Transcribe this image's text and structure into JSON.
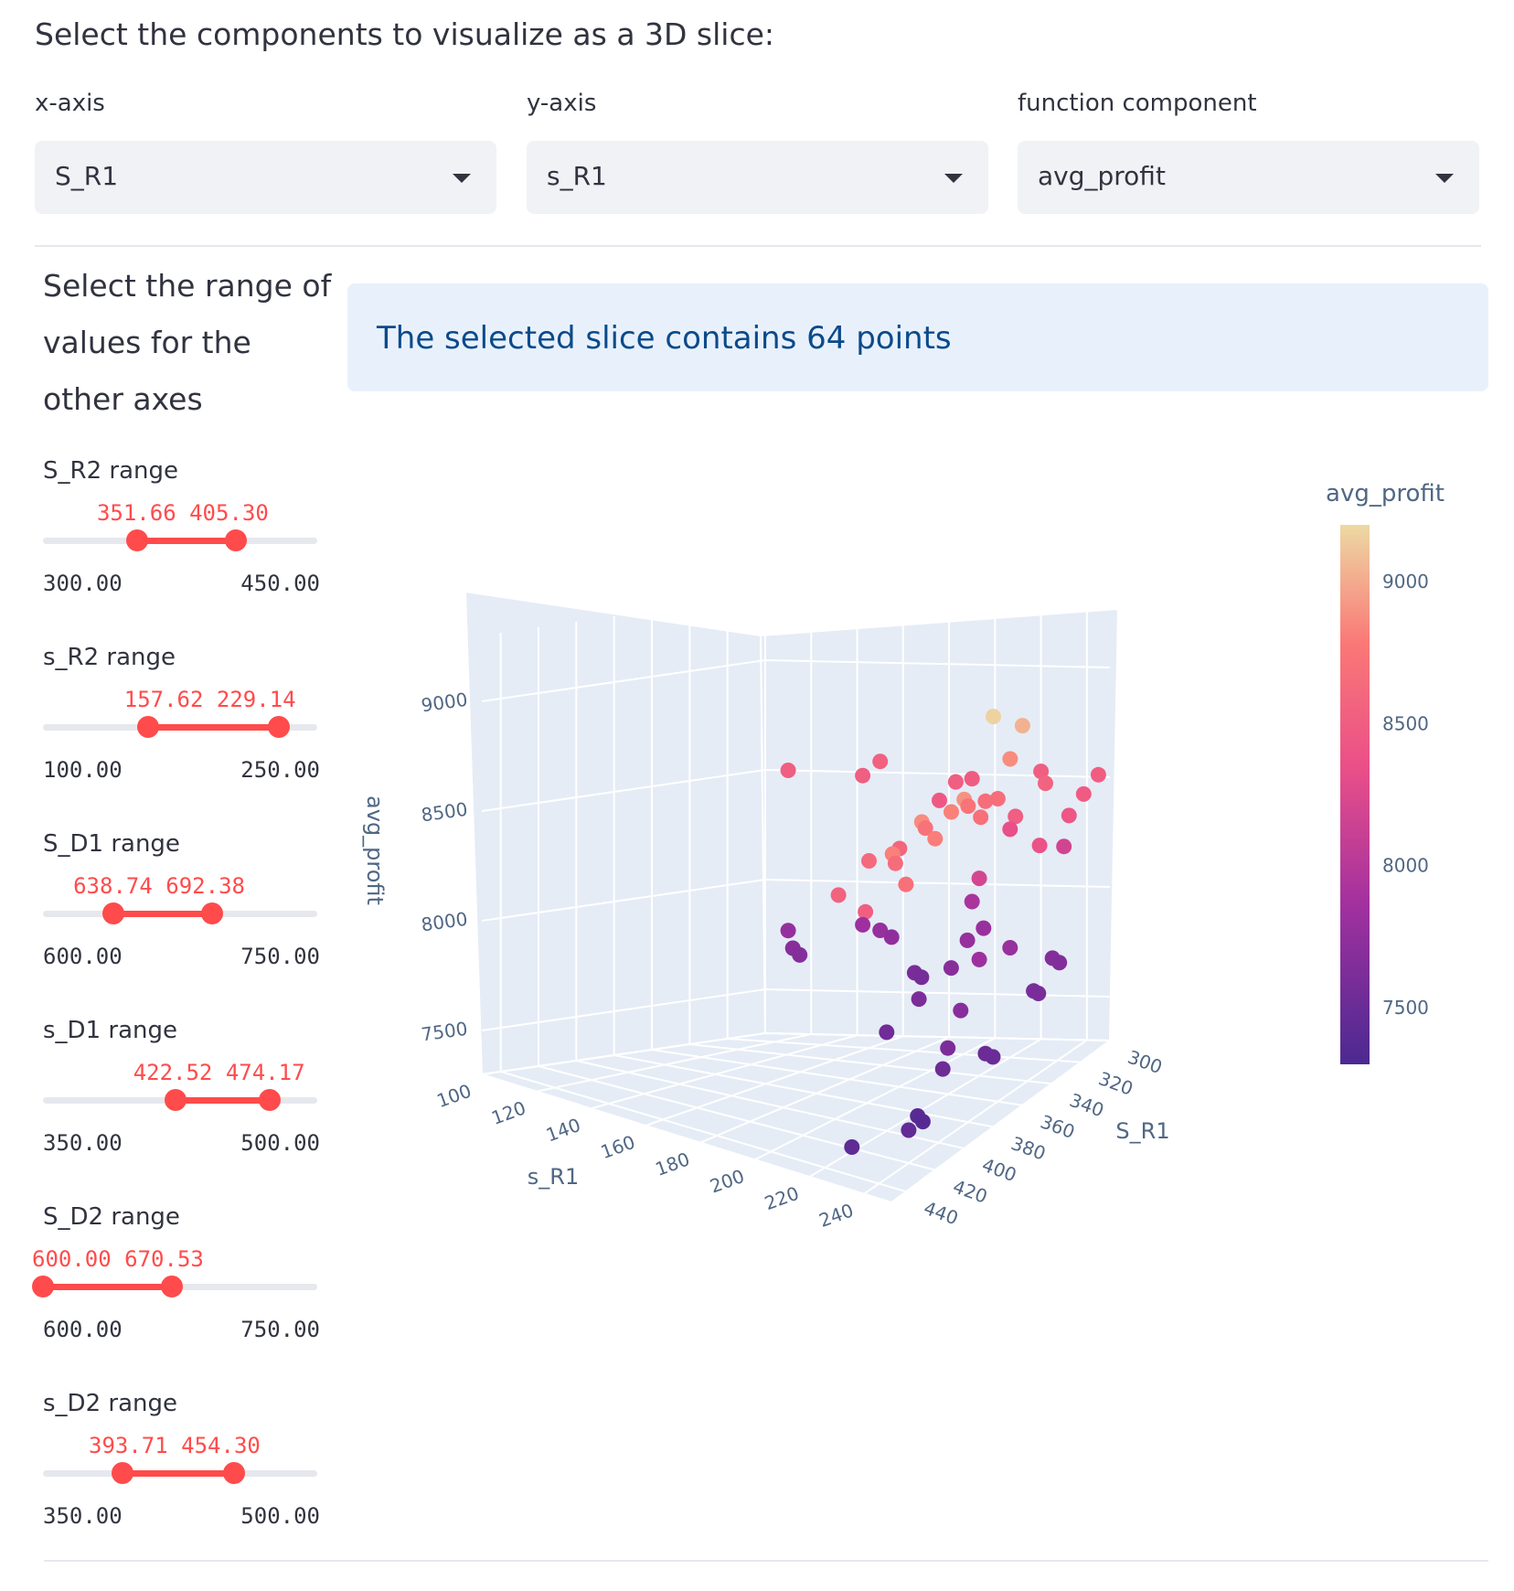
{
  "heading": "Select the components to visualize as a 3D slice:",
  "selectors": [
    {
      "label": "x-axis",
      "value": "S_R1"
    },
    {
      "label": "y-axis",
      "value": "s_R1"
    },
    {
      "label": "function component",
      "value": "avg_profit"
    }
  ],
  "sidebar": {
    "title": "Select the range of values for the other axes",
    "sliders": [
      {
        "label": "S_R2 range",
        "low": 351.66,
        "high": 405.3,
        "low_text": "351.66",
        "high_text": "405.30",
        "min": 300,
        "max": 450,
        "min_text": "300.00",
        "max_text": "450.00"
      },
      {
        "label": "s_R2 range",
        "low": 157.62,
        "high": 229.14,
        "low_text": "157.62",
        "high_text": "229.14",
        "min": 100,
        "max": 250,
        "min_text": "100.00",
        "max_text": "250.00"
      },
      {
        "label": "S_D1 range",
        "low": 638.74,
        "high": 692.38,
        "low_text": "638.74",
        "high_text": "692.38",
        "min": 600,
        "max": 750,
        "min_text": "600.00",
        "max_text": "750.00"
      },
      {
        "label": "s_D1 range",
        "low": 422.52,
        "high": 474.17,
        "low_text": "422.52",
        "high_text": "474.17",
        "min": 350,
        "max": 500,
        "min_text": "350.00",
        "max_text": "500.00"
      },
      {
        "label": "S_D2 range",
        "low": 600.0,
        "high": 670.53,
        "low_text": "600.00",
        "high_text": "670.53",
        "min": 600,
        "max": 750,
        "min_text": "600.00",
        "max_text": "750.00"
      },
      {
        "label": "s_D2 range",
        "low": 393.71,
        "high": 454.3,
        "low_text": "393.71",
        "high_text": "454.30",
        "min": 350,
        "max": 500,
        "min_text": "350.00",
        "max_text": "500.00"
      }
    ]
  },
  "info_message": "The selected slice contains 64 points",
  "chart_data": {
    "type": "scatter",
    "z_label": "avg_profit",
    "x_label": "S_R1",
    "y_label": "s_R1",
    "z_ticks": [
      "7500",
      "8000",
      "8500",
      "9000"
    ],
    "x_ticks": [
      "300",
      "320",
      "340",
      "360",
      "380",
      "400",
      "420",
      "440"
    ],
    "y_ticks": [
      "100",
      "120",
      "140",
      "160",
      "180",
      "200",
      "220",
      "240"
    ],
    "colorbar": {
      "title": "avg_profit",
      "ticks": [
        "7500",
        "8000",
        "8500",
        "9000"
      ],
      "range": [
        7300,
        9200
      ],
      "colors": [
        "#4b2991",
        "#c0369d",
        "#fa7876",
        "#edd9a3"
      ]
    },
    "points": [
      {
        "x": 300,
        "y": 110,
        "z": 8500
      },
      {
        "x": 300,
        "y": 150,
        "z": 8550
      },
      {
        "x": 310,
        "y": 150,
        "z": 8510
      },
      {
        "x": 300,
        "y": 190,
        "z": 8480
      },
      {
        "x": 310,
        "y": 190,
        "z": 8500
      },
      {
        "x": 320,
        "y": 190,
        "z": 8450
      },
      {
        "x": 300,
        "y": 220,
        "z": 8520
      },
      {
        "x": 300,
        "y": 245,
        "z": 8510
      },
      {
        "x": 310,
        "y": 245,
        "z": 8470
      },
      {
        "x": 320,
        "y": 245,
        "z": 8420
      },
      {
        "x": 340,
        "y": 245,
        "z": 8380
      },
      {
        "x": 320,
        "y": 220,
        "z": 8340
      },
      {
        "x": 340,
        "y": 220,
        "z": 8200
      },
      {
        "x": 300,
        "y": 230,
        "z": 8180
      },
      {
        "x": 320,
        "y": 235,
        "z": 8560
      },
      {
        "x": 340,
        "y": 235,
        "z": 8500
      },
      {
        "x": 360,
        "y": 235,
        "z": 8660
      },
      {
        "x": 360,
        "y": 245,
        "z": 8870
      },
      {
        "x": 360,
        "y": 240,
        "z": 8680
      },
      {
        "x": 380,
        "y": 240,
        "z": 8740
      },
      {
        "x": 380,
        "y": 245,
        "z": 8700
      },
      {
        "x": 400,
        "y": 245,
        "z": 8820
      },
      {
        "x": 420,
        "y": 245,
        "z": 8870
      },
      {
        "x": 440,
        "y": 245,
        "z": 8820
      },
      {
        "x": 400,
        "y": 225,
        "z": 8600
      },
      {
        "x": 420,
        "y": 225,
        "z": 8630
      },
      {
        "x": 440,
        "y": 225,
        "z": 8560
      },
      {
        "x": 400,
        "y": 235,
        "z": 8720
      },
      {
        "x": 420,
        "y": 235,
        "z": 8650
      },
      {
        "x": 440,
        "y": 235,
        "z": 8520
      },
      {
        "x": 380,
        "y": 250,
        "z": 9170
      },
      {
        "x": 360,
        "y": 250,
        "z": 9030
      },
      {
        "x": 400,
        "y": 250,
        "z": 8890
      },
      {
        "x": 420,
        "y": 250,
        "z": 8810
      },
      {
        "x": 440,
        "y": 250,
        "z": 8700
      },
      {
        "x": 300,
        "y": 110,
        "z": 7770
      },
      {
        "x": 300,
        "y": 112,
        "z": 7690
      },
      {
        "x": 300,
        "y": 115,
        "z": 7660
      },
      {
        "x": 300,
        "y": 150,
        "z": 7780
      },
      {
        "x": 300,
        "y": 155,
        "z": 7750
      },
      {
        "x": 310,
        "y": 150,
        "z": 7830
      },
      {
        "x": 300,
        "y": 165,
        "z": 7590
      },
      {
        "x": 300,
        "y": 168,
        "z": 7570
      },
      {
        "x": 300,
        "y": 190,
        "z": 7920
      },
      {
        "x": 300,
        "y": 195,
        "z": 7800
      },
      {
        "x": 310,
        "y": 195,
        "z": 7780
      },
      {
        "x": 320,
        "y": 195,
        "z": 7690
      },
      {
        "x": 340,
        "y": 195,
        "z": 7620
      },
      {
        "x": 360,
        "y": 195,
        "z": 7540
      },
      {
        "x": 320,
        "y": 220,
        "z": 7800
      },
      {
        "x": 340,
        "y": 220,
        "z": 7830
      },
      {
        "x": 300,
        "y": 225,
        "z": 7670
      },
      {
        "x": 300,
        "y": 228,
        "z": 7650
      },
      {
        "x": 320,
        "y": 230,
        "z": 7610
      },
      {
        "x": 320,
        "y": 232,
        "z": 7600
      },
      {
        "x": 360,
        "y": 225,
        "z": 7690
      },
      {
        "x": 360,
        "y": 235,
        "z": 7510
      },
      {
        "x": 360,
        "y": 238,
        "z": 7500
      },
      {
        "x": 380,
        "y": 230,
        "z": 7520
      },
      {
        "x": 400,
        "y": 232,
        "z": 7400
      },
      {
        "x": 400,
        "y": 234,
        "z": 7380
      },
      {
        "x": 380,
        "y": 232,
        "z": 7620
      },
      {
        "x": 420,
        "y": 240,
        "z": 7450
      },
      {
        "x": 440,
        "y": 230,
        "z": 7430
      }
    ]
  }
}
